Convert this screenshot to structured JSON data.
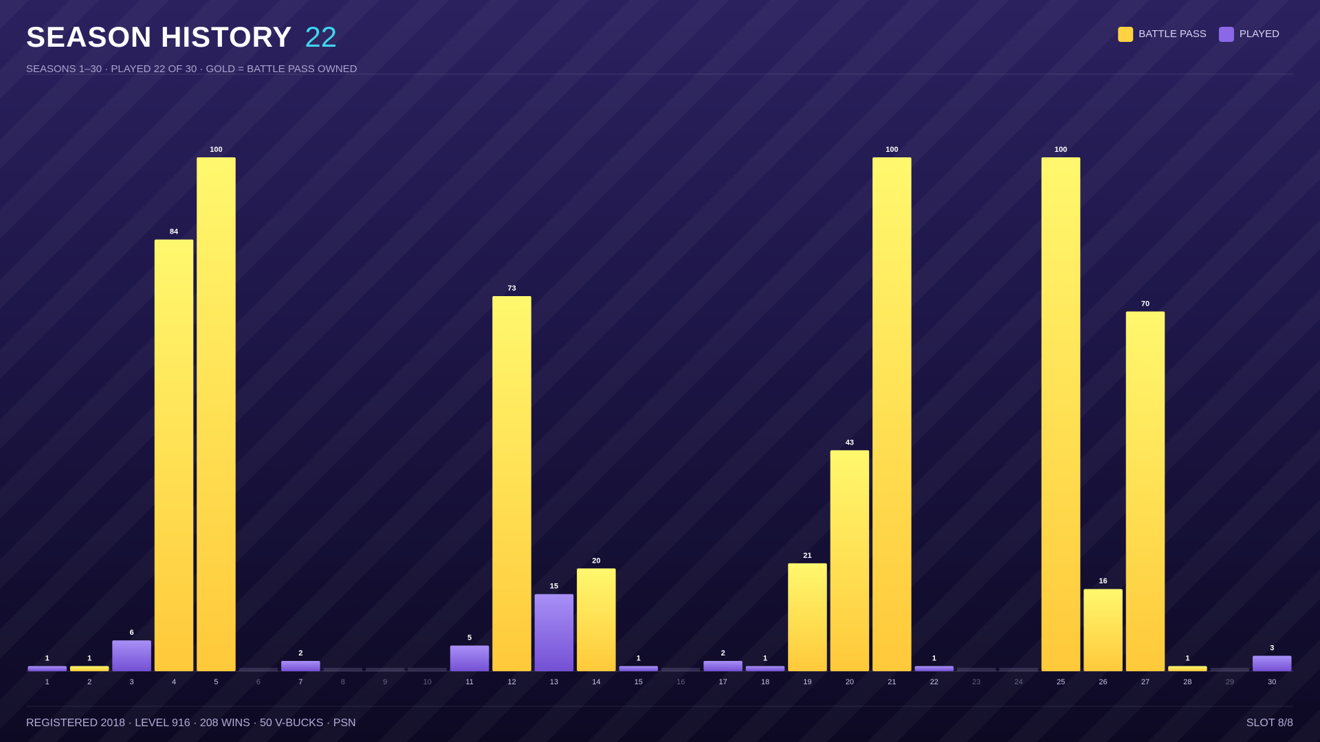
{
  "chart_data": {
    "type": "bar",
    "title": "SEASON HISTORY",
    "title_count": 22,
    "subtitle": "SEASONS 1–30 · PLAYED 22 OF 30 · GOLD = BATTLE PASS OWNED",
    "categories": [
      "1",
      "2",
      "3",
      "4",
      "5",
      "6",
      "7",
      "8",
      "9",
      "10",
      "11",
      "12",
      "13",
      "14",
      "15",
      "16",
      "17",
      "18",
      "19",
      "20",
      "21",
      "22",
      "23",
      "24",
      "25",
      "26",
      "27",
      "28",
      "29",
      "30"
    ],
    "series": [
      {
        "name": "BATTLE PASS",
        "color": "#ffd23f",
        "values": [
          null,
          1,
          null,
          84,
          100,
          null,
          null,
          null,
          null,
          null,
          null,
          73,
          null,
          20,
          null,
          null,
          null,
          null,
          21,
          43,
          100,
          null,
          null,
          null,
          100,
          16,
          70,
          1,
          null,
          null
        ]
      },
      {
        "name": "PLAYED",
        "color": "#8a68e6",
        "values": [
          1,
          null,
          6,
          null,
          null,
          null,
          2,
          null,
          null,
          null,
          5,
          null,
          15,
          null,
          1,
          null,
          2,
          1,
          null,
          null,
          null,
          1,
          null,
          null,
          null,
          null,
          null,
          null,
          null,
          3
        ]
      }
    ],
    "ylim": [
      0,
      100
    ],
    "legend": "top-right",
    "footer": "REGISTERED 2018 · LEVEL 916 · 208 WINS · 50 V-BUCKS · PSN",
    "slot": "SLOT 8/8"
  }
}
